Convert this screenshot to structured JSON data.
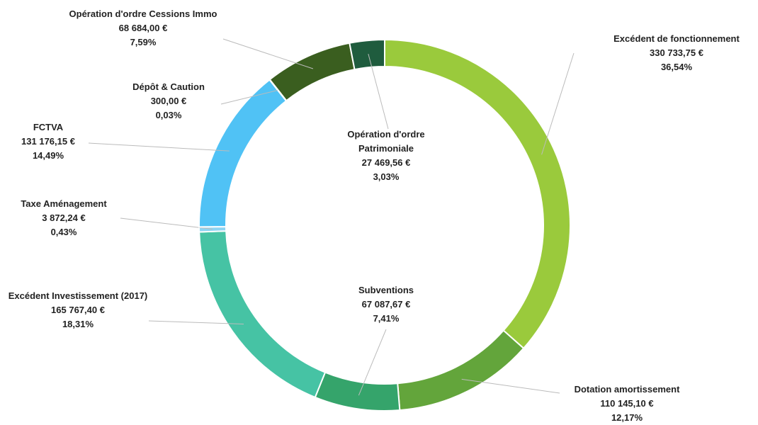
{
  "chart_data": {
    "type": "donut",
    "categories": [
      "Excédent de fonctionnement",
      "Dotation amortissement",
      "Subventions",
      "Excédent Investissement (2017)",
      "Taxe Aménagement",
      "FCTVA",
      "Dépôt & Caution",
      "Opération d'ordre Cessions Immo",
      "Opération d'ordre Patrimoniale"
    ],
    "values": [
      330733.75,
      110145.1,
      67087.67,
      165767.4,
      3872.24,
      131176.15,
      300.0,
      68684.0,
      27469.56
    ],
    "value_labels": [
      "330 733,75 €",
      "110 145,10 €",
      "67 087,67 €",
      "165 767,40 €",
      "3 872,24 €",
      "131 176,15 €",
      "300,00 €",
      "68 684,00 €",
      "27 469,56 €"
    ],
    "percentages": [
      36.54,
      12.17,
      7.41,
      18.31,
      0.43,
      14.49,
      0.03,
      7.59,
      3.03
    ],
    "percentage_labels": [
      "36,54%",
      "12,17%",
      "7,41%",
      "18,31%",
      "0,43%",
      "14,49%",
      "0,03%",
      "7,59%",
      "3,03%"
    ],
    "colors": [
      "#9aca3c",
      "#63a53b",
      "#35a46b",
      "#46c3a4",
      "#8ed4f2",
      "#50c2f5",
      "#3b6b3a",
      "#3a5e1f",
      "#1f5c3e"
    ]
  }
}
